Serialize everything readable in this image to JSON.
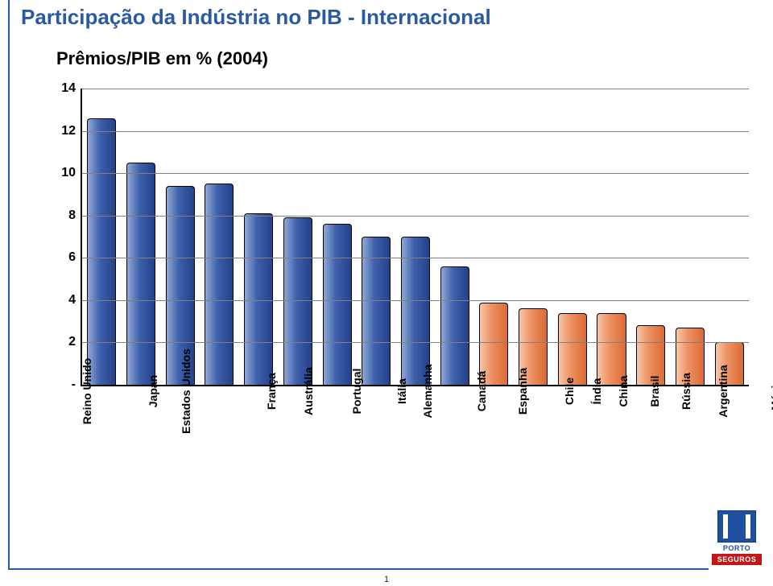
{
  "page": {
    "title": "Participação da Indústria no PIB - Internacional",
    "subtitle": "Prêmios/PIB em % (2004)",
    "page_number": "1"
  },
  "brand": {
    "line1": "PORTO",
    "line2": "SEGUROS",
    "color_primary": "#1f4f9e",
    "color_secondary": "#c01717"
  },
  "chart": {
    "type": "bar",
    "y_axis": {
      "min": 0,
      "max": 14,
      "tick_step": 2,
      "ticks": [
        "-",
        "2",
        "4",
        "6",
        "8",
        "10",
        "12",
        "14"
      ]
    },
    "grid_color": "#808080",
    "axis_color": "#000000",
    "background_color": "#ffffff",
    "colors": {
      "group_a_fill": "linear-gradient(90deg,#8fa9d6 0%,#3e60ab 45%,#24418a 100%)",
      "group_b_fill": "linear-gradient(90deg,#f6c6a9 0%,#ed8f5e 45%,#d96b36 100%)"
    },
    "bars": [
      {
        "label": "Reino Unido",
        "value": 12.6,
        "group": "a"
      },
      {
        "label": "Japan",
        "value": 10.5,
        "group": "a"
      },
      {
        "label": "Estados Unidos",
        "value": 9.4,
        "group": "a"
      },
      {
        "label": "França",
        "value": 9.5,
        "group": "a"
      },
      {
        "label": "Austrália",
        "value": 8.1,
        "group": "a"
      },
      {
        "label": "Portugal",
        "value": 7.9,
        "group": "a"
      },
      {
        "label": "Itália",
        "value": 7.6,
        "group": "a"
      },
      {
        "label": "Alemanha",
        "value": 7.0,
        "group": "a"
      },
      {
        "label": "Canadá",
        "value": 7.0,
        "group": "a"
      },
      {
        "label": "Espanha",
        "value": 5.6,
        "group": "a"
      },
      {
        "label": "Chile",
        "value": 3.9,
        "group": "b"
      },
      {
        "label": "Índia",
        "value": 3.6,
        "group": "b"
      },
      {
        "label": "China",
        "value": 3.4,
        "group": "b"
      },
      {
        "label": "Brasil",
        "value": 3.4,
        "group": "b"
      },
      {
        "label": "Rússia",
        "value": 2.8,
        "group": "b"
      },
      {
        "label": "Argentina",
        "value": 2.7,
        "group": "b"
      },
      {
        "label": "México",
        "value": 2.0,
        "group": "b"
      }
    ],
    "label_fontsize": 14,
    "tick_fontsize": 16
  }
}
